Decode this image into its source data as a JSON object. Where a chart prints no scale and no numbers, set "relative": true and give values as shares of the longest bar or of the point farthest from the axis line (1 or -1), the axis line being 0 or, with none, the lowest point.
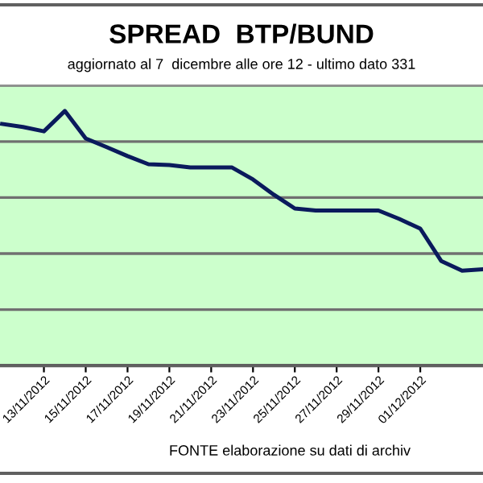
{
  "chart_data": {
    "type": "line",
    "title": "SPREAD  BTP/BUND",
    "subtitle": "aggiornato al 7  dicembre alle ore 12 - ultimo dato 331",
    "relative": true,
    "grid": "y",
    "marker": "none",
    "line_style": "solid",
    "categories": [
      null,
      null,
      "13/11/2012",
      null,
      "15/11/2012",
      null,
      "17/11/2012",
      null,
      "19/11/2012",
      null,
      "21/11/2012",
      null,
      "23/11/2012",
      null,
      "25/11/2012",
      null,
      "27/11/2012",
      null,
      "29/11/2012",
      null,
      "01/12/2012",
      null,
      null,
      null
    ],
    "series": [
      {
        "color": "#0a1a5c",
        "values": [
          0.949,
          0.937,
          0.92,
          1,
          0.892,
          0.858,
          0.823,
          0.791,
          0.788,
          0.778,
          0.778,
          0.778,
          0.731,
          0.671,
          0.617,
          0.609,
          0.609,
          0.609,
          0.609,
          0.576,
          0.538,
          0.411,
          0.373,
          0.378
        ]
      }
    ],
    "annotations": [
      "FONTE elaborazione su dati di archiv"
    ]
  }
}
